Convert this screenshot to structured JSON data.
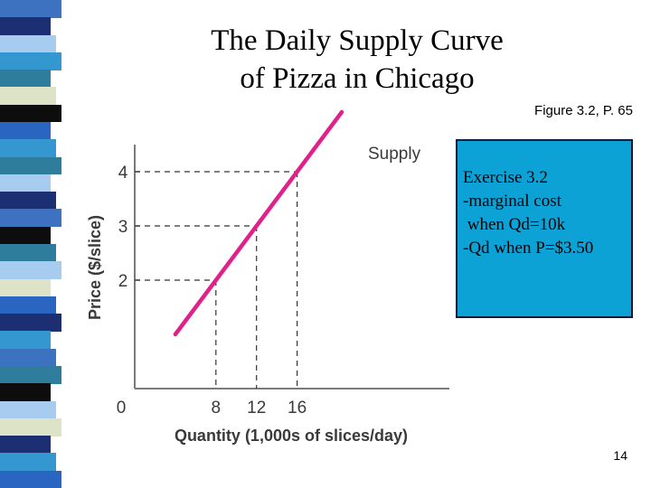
{
  "slide": {
    "title_line1": "The Daily Supply Curve",
    "title_line2": "of Pizza in Chicago",
    "figure_ref": "Figure 3.2, P. 65",
    "exercise_lines": [
      "Exercise 3.2",
      "-marginal cost",
      " when Qd=10k",
      "-Qd when P=$3.50"
    ],
    "page_number": "14"
  },
  "colors": {
    "supply_line": "#e0218a",
    "exercise_bg": "#0ca2d6",
    "stripe_palette": [
      "#3c72bf",
      "#1d2f73",
      "#a8ccef",
      "#3597cf",
      "#2f7d9c",
      "#dde3c6",
      "#0d0d0d",
      "#2b65c2"
    ]
  },
  "chart_data": {
    "type": "line",
    "title": "The Daily Supply Curve of Pizza in Chicago",
    "xlabel": "Quantity (1,000s of slices/day)",
    "ylabel": "Price ($/slice)",
    "x_ticks": [
      0,
      8,
      12,
      16
    ],
    "y_ticks": [
      2,
      3,
      4
    ],
    "origin_label": "0",
    "xlim": [
      0,
      31
    ],
    "ylim": [
      0,
      4.5
    ],
    "series": [
      {
        "name": "Supply",
        "x": [
          4,
          20.4
        ],
        "y": [
          1,
          5.1
        ]
      }
    ],
    "reference_points": [
      {
        "x": 8,
        "y": 2
      },
      {
        "x": 12,
        "y": 3
      },
      {
        "x": 16,
        "y": 4
      }
    ]
  }
}
